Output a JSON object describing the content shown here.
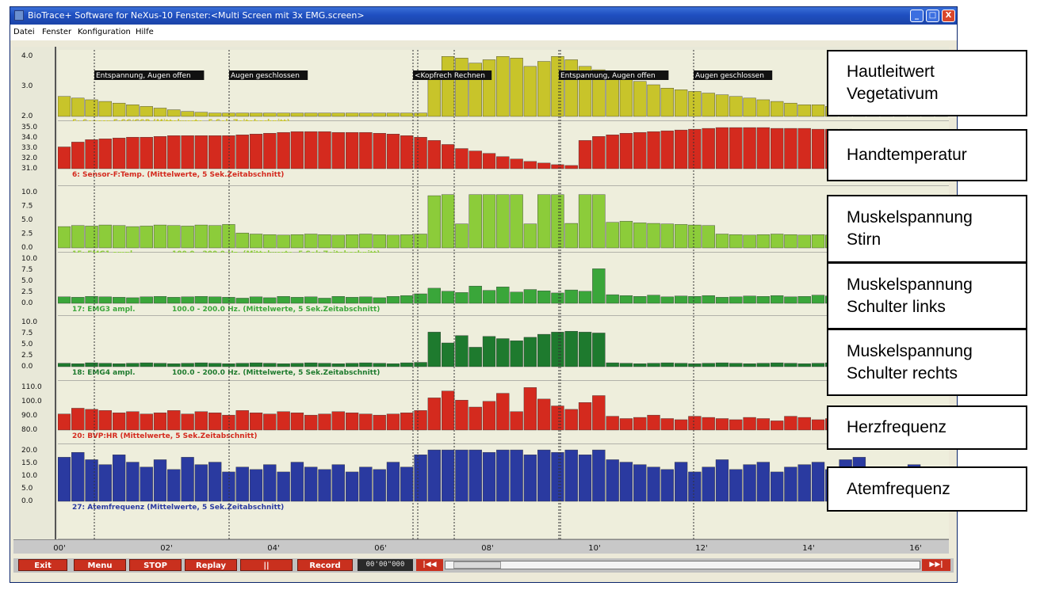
{
  "window": {
    "title": "BioTrace+ Software for NeXus-10     Fenster:<Multi Screen mit 3x EMG.screen>",
    "controls": [
      "_",
      "□",
      "X"
    ]
  },
  "menu": [
    "Datei",
    "Fenster",
    "Konfiguration",
    "Hilfe"
  ],
  "colors": {
    "scr": "#c8c42a",
    "temp": "#d42a1e",
    "emg1": "#8ccc3a",
    "emg3": "#3aa63a",
    "emg4": "#1e7a2e",
    "hr": "#d42a1e",
    "resp": "#2a3aa0"
  },
  "chart_data": [
    {
      "type": "bar",
      "id": "scr",
      "channel_label": "5: Sensor-E:SC/GSR (Mittelwerte, 5 Sek.Zeitabschnitt)",
      "ticks": [
        "4.0",
        "3.0",
        "2.0"
      ],
      "ylim": [
        1.0,
        4.8
      ],
      "values": [
        2.2,
        2.1,
        2.0,
        1.9,
        1.8,
        1.7,
        1.6,
        1.5,
        1.4,
        1.3,
        1.25,
        1.2,
        1.2,
        1.2,
        1.2,
        1.2,
        1.2,
        1.2,
        1.2,
        1.2,
        1.2,
        1.2,
        1.2,
        1.2,
        1.2,
        1.2,
        1.2,
        3.3,
        4.6,
        4.5,
        4.2,
        4.4,
        4.6,
        4.5,
        4.0,
        4.3,
        4.6,
        4.4,
        4.0,
        3.8,
        3.6,
        3.3,
        3.1,
        2.9,
        2.7,
        2.6,
        2.5,
        2.4,
        2.3,
        2.2,
        2.1,
        2.0,
        1.9,
        1.8,
        1.7,
        1.7,
        1.6,
        1.6,
        1.5,
        1.5,
        1.4,
        1.4,
        1.3,
        1.3,
        1.3
      ]
    },
    {
      "type": "bar",
      "id": "temp",
      "channel_label": "6: Sensor-F:Temp. (Mittelwerte, 5 Sek.Zeitabschnitt)",
      "ticks": [
        "35.0",
        "34.0",
        "33.0",
        "32.0",
        "31.0"
      ],
      "ylim": [
        30.5,
        36.0
      ],
      "values": [
        33.2,
        33.8,
        34.1,
        34.2,
        34.3,
        34.4,
        34.4,
        34.5,
        34.6,
        34.6,
        34.6,
        34.6,
        34.6,
        34.7,
        34.8,
        34.9,
        35.0,
        35.1,
        35.1,
        35.1,
        35.0,
        35.0,
        35.0,
        34.9,
        34.8,
        34.6,
        34.4,
        34.0,
        33.5,
        33.0,
        32.7,
        32.4,
        32.0,
        31.7,
        31.4,
        31.2,
        31.0,
        30.9,
        34.0,
        34.5,
        34.7,
        34.9,
        35.0,
        35.1,
        35.2,
        35.3,
        35.4,
        35.5,
        35.6,
        35.6,
        35.6,
        35.6,
        35.5,
        35.5,
        35.5,
        35.4,
        35.4,
        35.4,
        35.3,
        35.3,
        35.3,
        35.3,
        35.2,
        35.2,
        35.2
      ]
    },
    {
      "type": "bar",
      "id": "emg1",
      "channel_label": "15: EMG1 ampl.",
      "filter_label": "100.0 - 200.0 Hz. (Mittelwerte, 5 Sek.Zeitabschnitt)",
      "ticks": [
        "10.0",
        "7.5",
        "5.0",
        "2.5",
        "0.0"
      ],
      "ylim": [
        0,
        11
      ],
      "values": [
        4.0,
        4.2,
        4.1,
        4.3,
        4.2,
        4.0,
        4.1,
        4.3,
        4.2,
        4.1,
        4.3,
        4.2,
        4.4,
        2.8,
        2.6,
        2.5,
        2.4,
        2.5,
        2.6,
        2.5,
        2.4,
        2.5,
        2.6,
        2.5,
        2.4,
        2.5,
        2.6,
        9.8,
        10.0,
        4.5,
        10.0,
        10.0,
        10.0,
        10.0,
        4.5,
        10.0,
        10.0,
        4.6,
        10.0,
        10.0,
        4.8,
        5.0,
        4.7,
        4.6,
        4.5,
        4.4,
        4.3,
        4.2,
        2.6,
        2.5,
        2.4,
        2.5,
        2.6,
        2.5,
        2.4,
        2.5,
        2.4,
        2.5,
        2.3,
        2.4,
        2.5,
        2.4,
        2.3,
        2.4,
        2.3
      ]
    },
    {
      "type": "bar",
      "id": "emg3",
      "channel_label": "17: EMG3 ampl.",
      "filter_label": "100.0 - 200.0 Hz. (Mittelwerte, 5 Sek.Zeitabschnitt)",
      "ticks": [
        "10.0",
        "7.5",
        "5.0",
        "2.5",
        "0.0"
      ],
      "ylim": [
        0,
        11
      ],
      "values": [
        1.5,
        1.4,
        1.6,
        1.5,
        1.4,
        1.3,
        1.5,
        1.6,
        1.4,
        1.5,
        1.6,
        1.5,
        1.4,
        1.2,
        1.5,
        1.3,
        1.6,
        1.4,
        1.5,
        1.2,
        1.6,
        1.4,
        1.5,
        1.3,
        1.6,
        1.8,
        2.2,
        3.5,
        2.8,
        2.5,
        4.0,
        3.0,
        3.8,
        2.6,
        3.2,
        2.9,
        2.4,
        3.1,
        2.8,
        8.0,
        2.0,
        1.8,
        1.6,
        1.9,
        1.5,
        1.7,
        1.6,
        1.8,
        1.4,
        1.5,
        1.7,
        1.6,
        1.8,
        1.5,
        1.6,
        1.9,
        1.7,
        1.5,
        1.6,
        1.8,
        1.4,
        1.6,
        1.5,
        1.7,
        1.5
      ]
    },
    {
      "type": "bar",
      "id": "emg4",
      "channel_label": "18: EMG4 ampl.",
      "filter_label": "100.0 - 200.0 Hz. (Mittelwerte, 5 Sek.Zeitabschnitt)",
      "ticks": [
        "10.0",
        "7.5",
        "5.0",
        "2.5",
        "0.0"
      ],
      "ylim": [
        0,
        11
      ],
      "values": [
        0.8,
        0.7,
        0.9,
        0.8,
        0.7,
        0.8,
        0.9,
        0.8,
        0.7,
        0.8,
        0.9,
        0.8,
        0.7,
        0.8,
        0.9,
        0.8,
        0.7,
        0.8,
        0.9,
        0.8,
        0.7,
        0.8,
        0.9,
        0.8,
        0.7,
        0.9,
        1.0,
        8.0,
        5.5,
        7.2,
        4.5,
        7.0,
        6.5,
        6.0,
        6.8,
        7.5,
        8.0,
        8.2,
        8.0,
        7.8,
        0.9,
        0.8,
        0.7,
        0.8,
        0.9,
        0.8,
        0.7,
        0.8,
        0.9,
        0.8,
        0.7,
        0.8,
        0.9,
        0.8,
        0.7,
        0.8,
        0.9,
        0.8,
        0.7,
        0.8,
        0.9,
        0.8,
        0.7,
        0.8,
        0.7
      ]
    },
    {
      "type": "bar",
      "id": "hr",
      "channel_label": "20: BVP:HR (Mittelwerte, 5 Sek.Zeitabschnitt)",
      "ticks": [
        "110.0",
        "100.0",
        "90.0",
        "80.0"
      ],
      "ylim": [
        78,
        118
      ],
      "values": [
        92,
        97,
        96,
        95,
        93,
        94,
        92,
        93,
        95,
        92,
        94,
        93,
        91,
        95,
        93,
        92,
        94,
        93,
        91,
        92,
        94,
        93,
        92,
        91,
        92,
        93,
        95,
        106,
        112,
        104,
        98,
        103,
        110,
        94,
        115,
        105,
        99,
        96,
        102,
        108,
        90,
        88,
        89,
        91,
        88,
        87,
        90,
        89,
        88,
        87,
        89,
        88,
        86,
        90,
        89,
        87,
        88,
        86,
        89,
        87,
        88,
        86,
        87,
        88,
        87
      ]
    },
    {
      "type": "bar",
      "id": "resp",
      "channel_label": "27: Atemfrequenz (Mittelwerte, 5 Sek.Zeitabschnitt)",
      "ticks": [
        "20.0",
        "15.0",
        "10.0",
        "5.0",
        "0.0"
      ],
      "ylim": [
        0,
        22
      ],
      "values": [
        18,
        20,
        17,
        15,
        19,
        16,
        14,
        17,
        13,
        18,
        15,
        16,
        12,
        14,
        13,
        15,
        12,
        16,
        14,
        13,
        15,
        12,
        14,
        13,
        16,
        14,
        19,
        21,
        21,
        21,
        21,
        20,
        21,
        21,
        19,
        21,
        20,
        21,
        19,
        21,
        17,
        16,
        15,
        14,
        13,
        16,
        12,
        14,
        17,
        13,
        15,
        16,
        12,
        14,
        15,
        16,
        13,
        17,
        18,
        14,
        12,
        13,
        15,
        12,
        12
      ]
    }
  ],
  "annotations": [
    {
      "text": "Entspannung, Augen offen"
    },
    {
      "text": "Augen geschlossen"
    },
    {
      "text": "<Kopfrech Rechnen"
    },
    {
      "text": "Entspannung, Augen offen"
    },
    {
      "text": "Augen geschlossen"
    }
  ],
  "time_axis": [
    "00'",
    "02'",
    "04'",
    "06'",
    "08'",
    "10'",
    "12'",
    "14'",
    "16'"
  ],
  "toolbar": {
    "exit": "Exit",
    "menu": "Menu",
    "stop": "STOP",
    "replay": "Replay",
    "pause": "||",
    "record": "Record",
    "time": "00'00\"000",
    "start": "|◀◀",
    "end": "▶▶|"
  },
  "legend": [
    {
      "lines": [
        "Hautleitwert",
        "Vegetativum"
      ]
    },
    {
      "lines": [
        "Handtemperatur"
      ]
    },
    {
      "lines": [
        "Muskelspannung",
        "Stirn"
      ]
    },
    {
      "lines": [
        "Muskelspannung",
        "Schulter links"
      ]
    },
    {
      "lines": [
        "Muskelspannung",
        "Schulter rechts"
      ]
    },
    {
      "lines": [
        "Herzfrequenz"
      ]
    },
    {
      "lines": [
        "Atemfrequenz"
      ]
    }
  ]
}
